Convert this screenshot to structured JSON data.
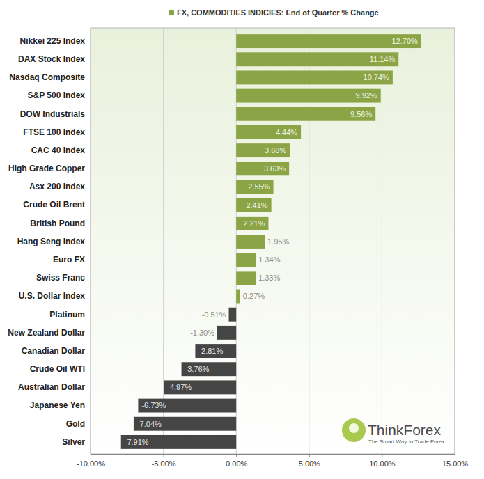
{
  "chart_data": {
    "type": "bar",
    "orientation": "horizontal",
    "title": "FX, COMMODITIES INDICIES: End of Quarter % Change",
    "categories": [
      "Nikkei 225 Index",
      "DAX Stock Index",
      "Nasdaq Composite",
      "S&P 500 Index",
      "DOW Industrials",
      "FTSE 100 Index",
      "CAC 40 Index",
      "High Grade Copper",
      "Asx 200 Index",
      "Crude Oil Brent",
      "British Pound",
      "Hang Seng Index",
      "Euro FX",
      "Swiss Franc",
      "U.S. Dollar Index",
      "Platinum",
      "New Zealand Dollar",
      "Canadian Dollar",
      "Crude Oil WTI",
      "Australian Dollar",
      "Japanese Yen",
      "Gold",
      "Silver"
    ],
    "values": [
      12.7,
      11.14,
      10.74,
      9.92,
      9.56,
      4.44,
      3.68,
      3.63,
      2.55,
      2.41,
      2.21,
      1.95,
      1.34,
      1.33,
      0.27,
      -0.51,
      -1.3,
      -2.81,
      -3.76,
      -4.97,
      -6.73,
      -7.04,
      -7.91
    ],
    "value_labels": [
      "12.70%",
      "11.14%",
      "10.74%",
      "9.92%",
      "9.56%",
      "4.44%",
      "3.68%",
      "3.63%",
      "2.55%",
      "2.41%",
      "2.21%",
      "1.95%",
      "1.34%",
      "1.33%",
      "0.27%",
      "-0.51%",
      "-1.30%",
      "-2.81%",
      "-3.76%",
      "-4.97%",
      "-6.73%",
      "-7.04%",
      "-7.91%"
    ],
    "colors": [
      "#8ba446",
      "#8ba446",
      "#8ba446",
      "#8ba446",
      "#8ba446",
      "#8ba446",
      "#8ba446",
      "#8ba446",
      "#8ba446",
      "#8ba446",
      "#8ba446",
      "#8ba446",
      "#8ba446",
      "#8ba446",
      "#8ba446",
      "#454545",
      "#454545",
      "#454545",
      "#454545",
      "#454545",
      "#454545",
      "#454545",
      "#454545"
    ],
    "xlim": [
      -10,
      15
    ],
    "xticks": [
      {
        "value": -10,
        "label": "-10.00%"
      },
      {
        "value": -5,
        "label": "-5.00%"
      },
      {
        "value": 0,
        "label": "0.00%"
      },
      {
        "value": 5,
        "label": "5.00%"
      },
      {
        "value": 10,
        "label": "10.00%"
      },
      {
        "value": 15,
        "label": "15.00%"
      }
    ],
    "grid": true,
    "data_labels": true,
    "annotations": [
      "ThinkForex",
      "The Smart Way to Trade Forex"
    ]
  }
}
